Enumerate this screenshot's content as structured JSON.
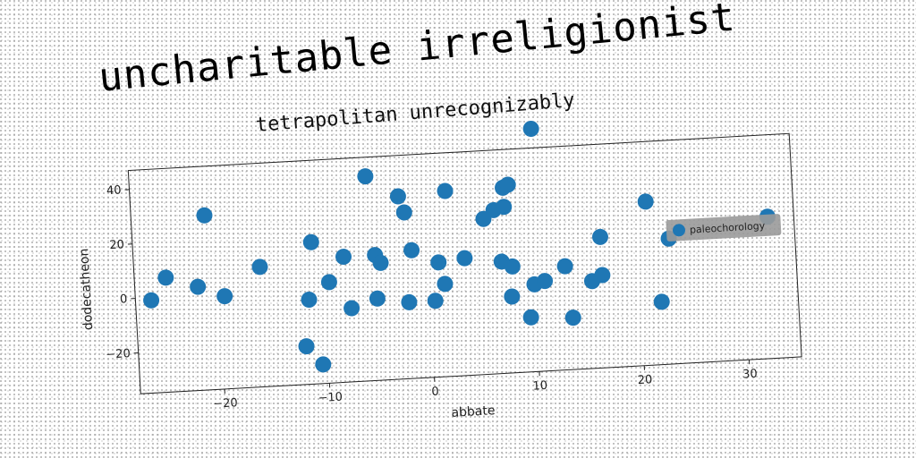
{
  "title": "uncharitable irreligionist",
  "chart_data": {
    "type": "scatter",
    "title": "tetrapolitan unrecognizably",
    "xlabel": "abbate",
    "ylabel": "dodecatheon",
    "xlim": [
      -28,
      35
    ],
    "ylim": [
      -35,
      47
    ],
    "xticks": [
      -20,
      -10,
      0,
      10,
      20,
      30
    ],
    "yticks": [
      -20,
      0,
      20,
      40
    ],
    "grid": false,
    "legend_position": "right",
    "colors": {
      "series": "#1f77b4",
      "legend_bg": "#9a9a9a"
    },
    "series": [
      {
        "name": "paleochorology",
        "points": [
          {
            "x": -26.5,
            "y": -1
          },
          {
            "x": -25,
            "y": 7
          },
          {
            "x": -22,
            "y": 3
          },
          {
            "x": -21,
            "y": 29
          },
          {
            "x": -19.5,
            "y": -1
          },
          {
            "x": -16,
            "y": 9
          },
          {
            "x": -12,
            "y": -21
          },
          {
            "x": -11.5,
            "y": -4
          },
          {
            "x": -11,
            "y": 17
          },
          {
            "x": -10.5,
            "y": -28
          },
          {
            "x": -9.5,
            "y": 2
          },
          {
            "x": -8,
            "y": 11
          },
          {
            "x": -7.5,
            "y": -8
          },
          {
            "x": -5.5,
            "y": 40
          },
          {
            "x": -5,
            "y": -5
          },
          {
            "x": -5,
            "y": 11
          },
          {
            "x": -4.5,
            "y": 8
          },
          {
            "x": -2.5,
            "y": 32
          },
          {
            "x": -2,
            "y": 26
          },
          {
            "x": -2,
            "y": -7
          },
          {
            "x": -1.5,
            "y": 12
          },
          {
            "x": 0.5,
            "y": -7
          },
          {
            "x": 1,
            "y": 7
          },
          {
            "x": 1.5,
            "y": -1
          },
          {
            "x": 2,
            "y": 33
          },
          {
            "x": 3.5,
            "y": 8
          },
          {
            "x": 5.5,
            "y": 22
          },
          {
            "x": 6.5,
            "y": 25
          },
          {
            "x": 7,
            "y": 6
          },
          {
            "x": 7.5,
            "y": 26
          },
          {
            "x": 7.5,
            "y": 33
          },
          {
            "x": 8,
            "y": 34
          },
          {
            "x": 7.8,
            "y": -7
          },
          {
            "x": 8,
            "y": 4
          },
          {
            "x": 9.5,
            "y": -15
          },
          {
            "x": 10,
            "y": -3
          },
          {
            "x": 11,
            "y": -2
          },
          {
            "x": 10.5,
            "y": 54
          },
          {
            "x": 13,
            "y": 3
          },
          {
            "x": 13.5,
            "y": -16
          },
          {
            "x": 15.5,
            "y": -3
          },
          {
            "x": 16.5,
            "y": -1
          },
          {
            "x": 16.5,
            "y": 13
          },
          {
            "x": 21,
            "y": 25
          },
          {
            "x": 22,
            "y": -12
          },
          {
            "x": 23,
            "y": 11
          },
          {
            "x": 32.5,
            "y": 17
          }
        ]
      }
    ]
  }
}
